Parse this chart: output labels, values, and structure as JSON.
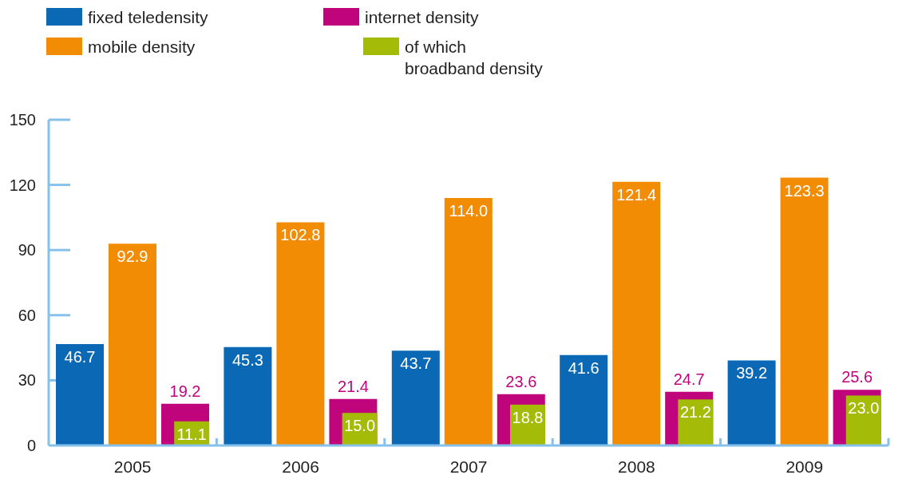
{
  "chart_data": {
    "type": "bar",
    "categories": [
      "2005",
      "2006",
      "2007",
      "2008",
      "2009"
    ],
    "series": [
      {
        "name": "fixed teledensity",
        "color": "#0a68b5",
        "values": [
          46.7,
          45.3,
          43.7,
          41.6,
          39.2
        ],
        "value_labels": [
          "46.7",
          "45.3",
          "43.7",
          "41.6",
          "39.2"
        ]
      },
      {
        "name": "mobile density",
        "color": "#f28c05",
        "values": [
          92.9,
          102.8,
          114.0,
          121.4,
          123.3
        ],
        "value_labels": [
          "92.9",
          "102.8",
          "114.0",
          "121.4",
          "123.3"
        ]
      },
      {
        "name": "internet density",
        "color": "#c0057c",
        "values": [
          19.2,
          21.4,
          23.6,
          24.7,
          25.6
        ],
        "value_labels": [
          "19.2",
          "21.4",
          "23.6",
          "24.7",
          "25.6"
        ]
      },
      {
        "name": "of which\nbroadband density",
        "color": "#a4bb08",
        "values": [
          11.1,
          15.0,
          18.8,
          21.2,
          23.0
        ],
        "value_labels": [
          "11.1",
          "15.0",
          "18.8",
          "21.2",
          "23.0"
        ]
      }
    ],
    "ylim": [
      0,
      150
    ],
    "yticks": [
      0,
      30,
      60,
      90,
      120,
      150
    ],
    "legend": "top left"
  }
}
